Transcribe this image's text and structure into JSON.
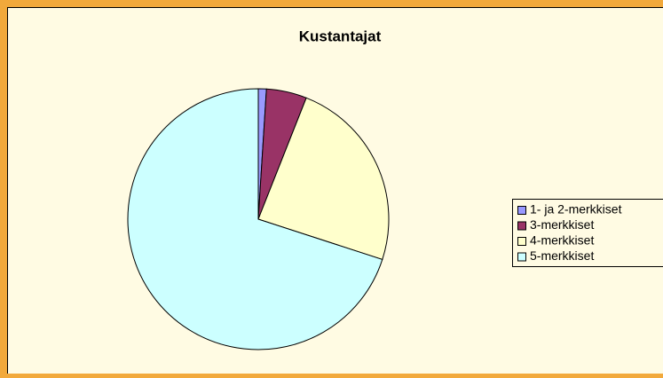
{
  "chart_data": {
    "type": "pie",
    "title": "Kustantajat",
    "categories": [
      "1- ja 2-merkkiset",
      "3-merkkiset",
      "4-merkkiset",
      "5-merkkiset"
    ],
    "values": [
      1,
      5,
      24,
      70
    ],
    "colors": [
      "#9999ff",
      "#993366",
      "#ffffcc",
      "#ccffff"
    ],
    "legend": "right"
  }
}
